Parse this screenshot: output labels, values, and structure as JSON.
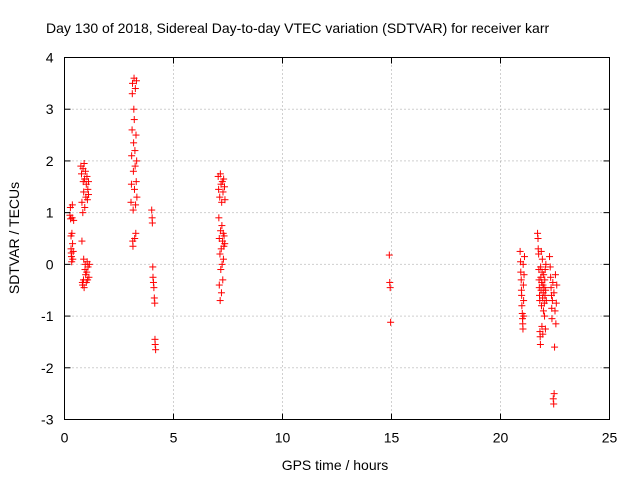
{
  "chart_data": {
    "type": "scatter",
    "title": "Day 130 of 2018, Sidereal Day-to-day VTEC variation (SDTVAR) for receiver karr",
    "xlabel": "GPS time / hours",
    "ylabel": "SDTVAR / TECUs",
    "xlim": [
      0,
      25
    ],
    "ylim": [
      -3,
      4
    ],
    "x_ticks": [
      "0",
      "5",
      "10",
      "15",
      "20",
      "25"
    ],
    "y_ticks": [
      "-3",
      "-2",
      "-1",
      "0",
      "1",
      "2",
      "3",
      "4"
    ],
    "grid": true,
    "marker": "+",
    "color": "#ff0000",
    "series": [
      {
        "name": "SDTVAR",
        "points": [
          [
            0.25,
            0.95
          ],
          [
            0.27,
            1.1
          ],
          [
            0.28,
            0.88
          ],
          [
            0.3,
            0.55
          ],
          [
            0.3,
            0.3
          ],
          [
            0.31,
            0.22
          ],
          [
            0.32,
            0.15
          ],
          [
            0.33,
            0.05
          ],
          [
            0.34,
            0.6
          ],
          [
            0.35,
            0.9
          ],
          [
            0.36,
            1.15
          ],
          [
            0.37,
            0.4
          ],
          [
            0.38,
            0.1
          ],
          [
            0.4,
            0.25
          ],
          [
            0.42,
            0.85
          ],
          [
            0.75,
            1.9
          ],
          [
            0.78,
            1.75
          ],
          [
            0.8,
            1.2
          ],
          [
            0.8,
            0.45
          ],
          [
            0.82,
            -0.35
          ],
          [
            0.83,
            -0.4
          ],
          [
            0.84,
            1.0
          ],
          [
            0.85,
            1.85
          ],
          [
            0.86,
            1.6
          ],
          [
            0.87,
            -0.3
          ],
          [
            0.88,
            0.1
          ],
          [
            0.88,
            1.4
          ],
          [
            0.9,
            -0.45
          ],
          [
            0.9,
            1.95
          ],
          [
            0.92,
            1.65
          ],
          [
            0.93,
            1.1
          ],
          [
            0.94,
            -0.1
          ],
          [
            0.95,
            0.0
          ],
          [
            0.96,
            1.8
          ],
          [
            0.97,
            -0.2
          ],
          [
            0.98,
            1.3
          ],
          [
            1.0,
            -0.35
          ],
          [
            1.0,
            1.55
          ],
          [
            1.02,
            -0.15
          ],
          [
            1.03,
            1.7
          ],
          [
            1.04,
            0.05
          ],
          [
            1.05,
            1.25
          ],
          [
            1.06,
            -0.3
          ],
          [
            1.07,
            1.45
          ],
          [
            1.08,
            -0.05
          ],
          [
            1.1,
            1.35
          ],
          [
            1.1,
            1.6
          ],
          [
            1.12,
            -0.25
          ],
          [
            1.14,
            0.0
          ],
          [
            3.05,
            1.2
          ],
          [
            3.07,
            1.55
          ],
          [
            3.08,
            2.1
          ],
          [
            3.1,
            2.6
          ],
          [
            3.11,
            3.3
          ],
          [
            3.12,
            3.5
          ],
          [
            3.13,
            0.45
          ],
          [
            3.14,
            0.35
          ],
          [
            3.15,
            1.05
          ],
          [
            3.16,
            1.8
          ],
          [
            3.17,
            2.35
          ],
          [
            3.18,
            3.0
          ],
          [
            3.19,
            3.6
          ],
          [
            3.2,
            2.8
          ],
          [
            3.21,
            1.45
          ],
          [
            3.22,
            0.5
          ],
          [
            3.23,
            2.2
          ],
          [
            3.24,
            1.9
          ],
          [
            3.25,
            3.4
          ],
          [
            3.26,
            1.15
          ],
          [
            3.27,
            0.6
          ],
          [
            3.28,
            2.5
          ],
          [
            3.29,
            1.6
          ],
          [
            3.3,
            3.55
          ],
          [
            3.31,
            2.0
          ],
          [
            3.32,
            1.3
          ],
          [
            4.0,
            1.05
          ],
          [
            4.02,
            0.9
          ],
          [
            4.03,
            0.8
          ],
          [
            4.05,
            -0.05
          ],
          [
            4.06,
            -0.25
          ],
          [
            4.08,
            -0.35
          ],
          [
            4.1,
            -0.45
          ],
          [
            4.12,
            -0.65
          ],
          [
            4.14,
            -0.75
          ],
          [
            4.15,
            -1.45
          ],
          [
            4.16,
            -1.55
          ],
          [
            4.18,
            -1.65
          ],
          [
            7.05,
            1.7
          ],
          [
            7.07,
            1.45
          ],
          [
            7.08,
            0.9
          ],
          [
            7.1,
            0.5
          ],
          [
            7.1,
            -0.4
          ],
          [
            7.12,
            1.3
          ],
          [
            7.13,
            0.2
          ],
          [
            7.14,
            -0.7
          ],
          [
            7.15,
            1.75
          ],
          [
            7.16,
            0.65
          ],
          [
            7.17,
            -0.1
          ],
          [
            7.18,
            1.55
          ],
          [
            7.19,
            0.3
          ],
          [
            7.2,
            -0.55
          ],
          [
            7.21,
            1.2
          ],
          [
            7.22,
            0.75
          ],
          [
            7.23,
            0.0
          ],
          [
            7.24,
            1.6
          ],
          [
            7.25,
            0.45
          ],
          [
            7.26,
            -0.3
          ],
          [
            7.27,
            1.4
          ],
          [
            7.28,
            0.6
          ],
          [
            7.29,
            0.1
          ],
          [
            7.3,
            1.65
          ],
          [
            7.31,
            0.35
          ],
          [
            7.32,
            0.55
          ],
          [
            7.34,
            1.5
          ],
          [
            7.35,
            0.4
          ],
          [
            7.36,
            1.25
          ],
          [
            14.9,
            0.18
          ],
          [
            14.92,
            -0.35
          ],
          [
            14.94,
            -0.45
          ],
          [
            14.96,
            -1.12
          ],
          [
            20.9,
            0.25
          ],
          [
            20.92,
            0.05
          ],
          [
            20.93,
            -0.15
          ],
          [
            20.95,
            -0.3
          ],
          [
            20.96,
            -0.5
          ],
          [
            20.97,
            -0.6
          ],
          [
            20.98,
            -0.8
          ],
          [
            21.0,
            -0.95
          ],
          [
            21.01,
            -1.05
          ],
          [
            21.02,
            -1.15
          ],
          [
            21.03,
            -1.25
          ],
          [
            21.04,
            0.0
          ],
          [
            21.05,
            -0.4
          ],
          [
            21.06,
            -0.7
          ],
          [
            21.07,
            -1.0
          ],
          [
            21.08,
            -0.2
          ],
          [
            21.1,
            0.15
          ],
          [
            21.7,
            0.6
          ],
          [
            21.72,
            0.5
          ],
          [
            21.73,
            0.3
          ],
          [
            21.75,
            0.2
          ],
          [
            21.76,
            -0.1
          ],
          [
            21.77,
            -0.3
          ],
          [
            21.78,
            -0.45
          ],
          [
            21.79,
            -0.6
          ],
          [
            21.8,
            -0.7
          ],
          [
            21.81,
            -1.3
          ],
          [
            21.82,
            -1.4
          ],
          [
            21.83,
            -1.55
          ],
          [
            21.84,
            -0.05
          ],
          [
            21.85,
            -0.25
          ],
          [
            21.86,
            -0.5
          ],
          [
            21.87,
            0.25
          ],
          [
            21.88,
            -0.8
          ],
          [
            21.89,
            -0.35
          ],
          [
            21.9,
            -1.2
          ],
          [
            21.91,
            -0.15
          ],
          [
            21.92,
            0.1
          ],
          [
            21.93,
            -0.65
          ],
          [
            21.94,
            -1.35
          ],
          [
            21.95,
            -0.4
          ],
          [
            21.96,
            -0.55
          ],
          [
            21.97,
            -0.9
          ],
          [
            21.98,
            -0.2
          ],
          [
            22.0,
            -0.45
          ],
          [
            22.01,
            -0.75
          ],
          [
            22.02,
            -1.0
          ],
          [
            22.03,
            -0.3
          ],
          [
            22.04,
            -0.6
          ],
          [
            22.05,
            -0.1
          ],
          [
            22.06,
            -1.25
          ],
          [
            22.07,
            -0.5
          ],
          [
            22.08,
            0.0
          ],
          [
            22.1,
            -0.7
          ],
          [
            22.25,
            0.15
          ],
          [
            22.28,
            -0.05
          ],
          [
            22.3,
            -0.25
          ],
          [
            22.32,
            -0.45
          ],
          [
            22.34,
            -0.6
          ],
          [
            22.35,
            -0.85
          ],
          [
            22.36,
            -1.05
          ],
          [
            22.38,
            -0.7
          ],
          [
            22.4,
            -0.35
          ],
          [
            22.42,
            -2.6
          ],
          [
            22.44,
            -2.7
          ],
          [
            22.45,
            -0.55
          ],
          [
            22.46,
            -2.5
          ],
          [
            22.48,
            -1.6
          ],
          [
            22.5,
            -0.9
          ],
          [
            22.52,
            -0.2
          ],
          [
            22.54,
            -1.15
          ],
          [
            22.56,
            -0.75
          ],
          [
            22.58,
            -0.4
          ]
        ]
      }
    ]
  }
}
